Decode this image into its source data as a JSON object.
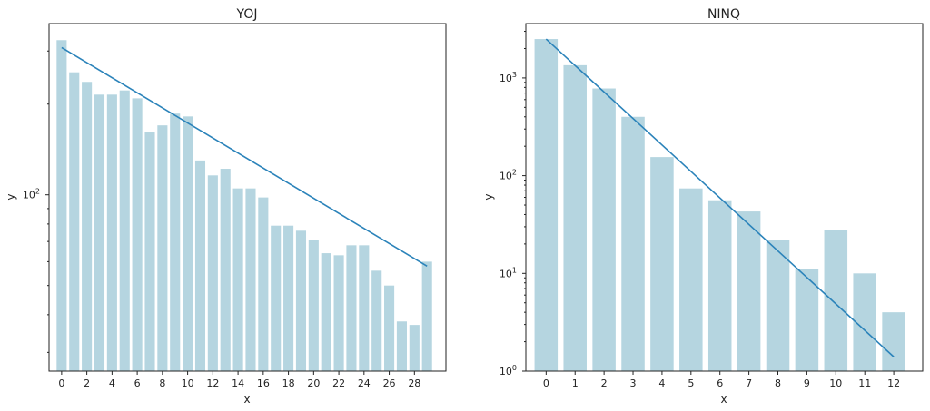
{
  "colors": {
    "bar": "#b5d5e0",
    "line": "#2b83ba",
    "axis": "#222222"
  },
  "chart_data": [
    {
      "type": "bar",
      "title": "YOJ",
      "xlabel": "x",
      "ylabel": "y",
      "yscale": "log",
      "ylim": [
        26,
        370
      ],
      "x": [
        0,
        1,
        2,
        3,
        4,
        5,
        6,
        7,
        8,
        9,
        10,
        11,
        12,
        13,
        14,
        15,
        16,
        17,
        18,
        19,
        20,
        21,
        22,
        23,
        24,
        25,
        26,
        27,
        28,
        29
      ],
      "values": [
        326,
        255,
        237,
        215,
        215,
        222,
        209,
        161,
        170,
        186,
        182,
        130,
        116,
        122,
        105,
        105,
        98,
        79,
        79,
        76,
        71,
        64,
        63,
        68,
        68,
        56,
        50,
        38,
        37,
        60
      ],
      "trend": {
        "x": [
          0,
          29
        ],
        "y": [
          308,
          58
        ]
      },
      "xticks": [
        "0",
        "2",
        "4",
        "6",
        "8",
        "10",
        "12",
        "14",
        "16",
        "18",
        "20",
        "22",
        "24",
        "26",
        "28"
      ],
      "yticks": [
        {
          "base": "10",
          "exp": "2",
          "value": 100
        }
      ],
      "grid": false,
      "legend": "none"
    },
    {
      "type": "bar",
      "title": "NINQ",
      "xlabel": "x",
      "ylabel": "y",
      "yscale": "log",
      "ylim": [
        1,
        3600
      ],
      "x": [
        0,
        1,
        2,
        3,
        4,
        5,
        6,
        7,
        8,
        9,
        10,
        11,
        12
      ],
      "values": [
        2500,
        1350,
        780,
        400,
        155,
        74,
        56,
        43,
        22,
        11,
        28,
        10,
        4
      ],
      "trend": {
        "x": [
          0,
          12
        ],
        "y": [
          2500,
          1.4
        ]
      },
      "xticks": [
        "0",
        "1",
        "2",
        "3",
        "4",
        "5",
        "6",
        "7",
        "8",
        "9",
        "10",
        "11",
        "12"
      ],
      "yticks": [
        {
          "base": "10",
          "exp": "0",
          "value": 1
        },
        {
          "base": "10",
          "exp": "1",
          "value": 10
        },
        {
          "base": "10",
          "exp": "2",
          "value": 100
        },
        {
          "base": "10",
          "exp": "3",
          "value": 1000
        }
      ],
      "grid": false,
      "legend": "none"
    }
  ]
}
